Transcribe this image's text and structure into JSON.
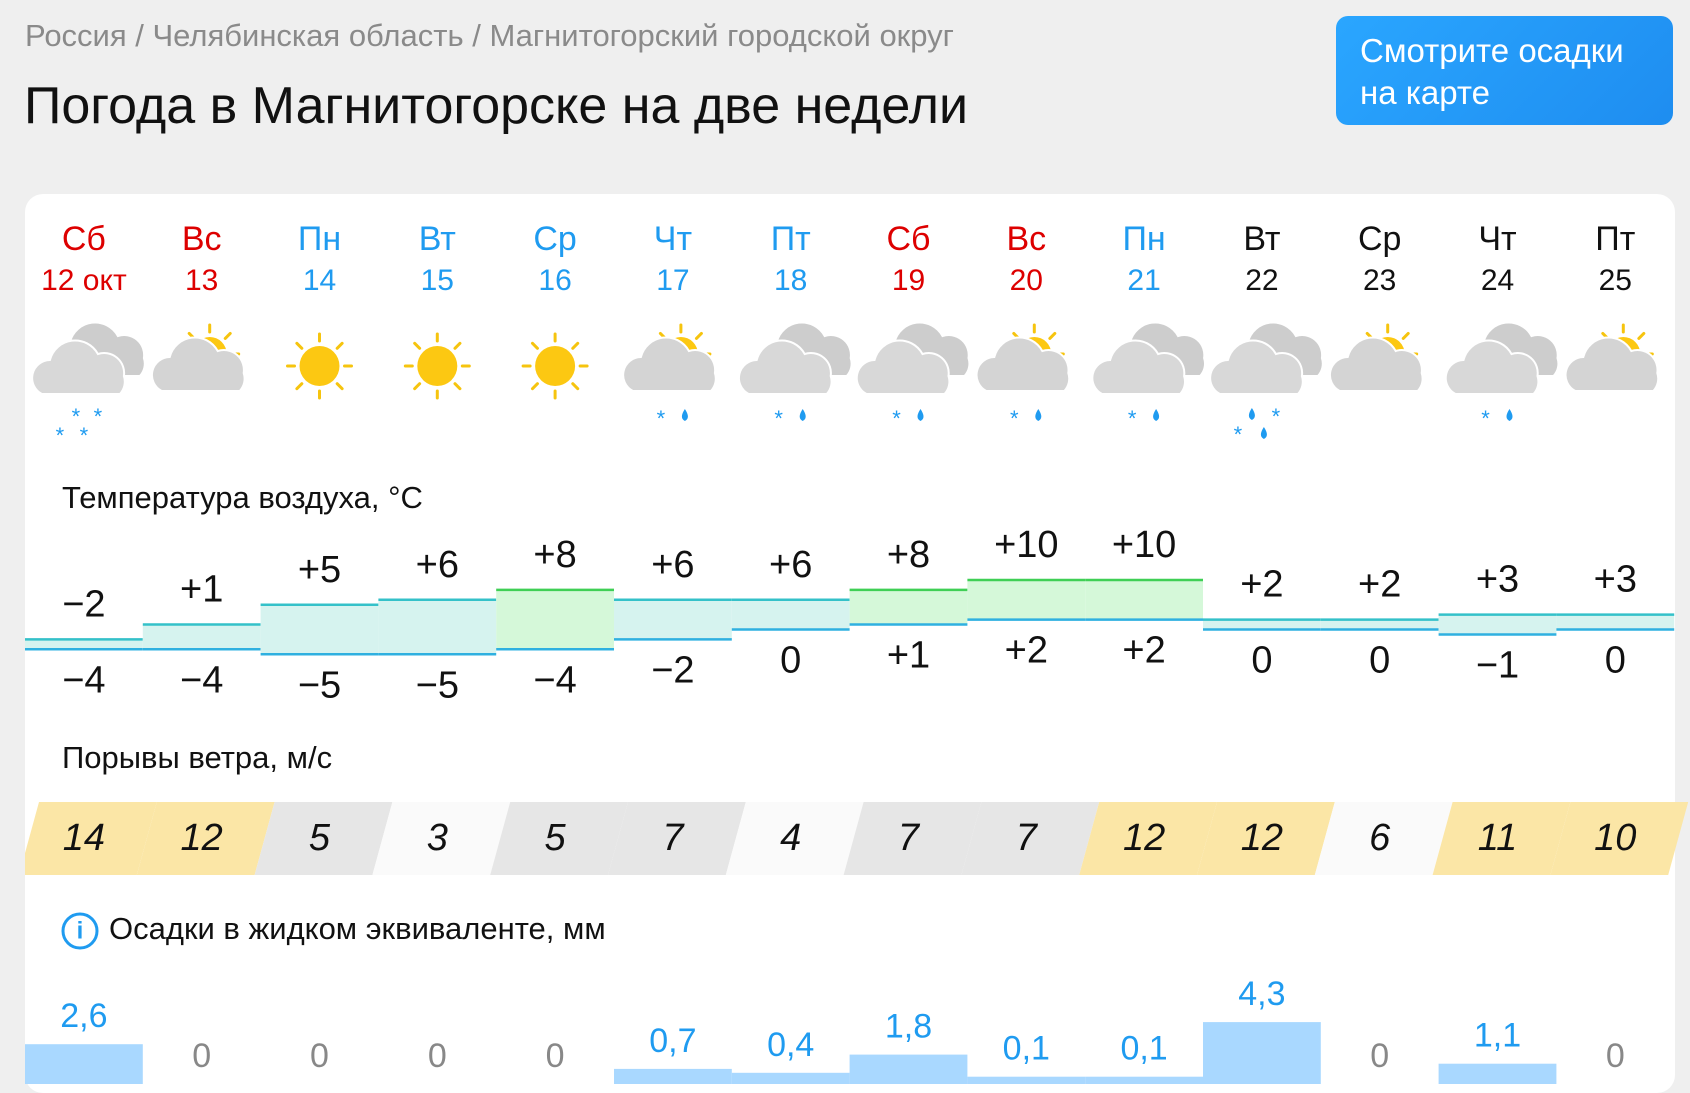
{
  "breadcrumb": "Россия / Челябинская область / Магнитогорский городской округ",
  "title": "Погода в Магнитогорске на две недели",
  "map_button": "Смотрите осадки на карте",
  "temperature_label": "Температура воздуха, °C",
  "wind_label": "Порывы ветра, м/с",
  "precipitation_label": "Осадки в жидком эквиваленте, мм",
  "days": [
    {
      "weekday": "Сб",
      "date": "12 окт",
      "temp_max": {
        "value": -2,
        "label": "−2"
      },
      "temp_min": {
        "value": -4,
        "label": "−4"
      },
      "wind": 14,
      "precipitation": {
        "value": 2.6,
        "label": "2,6"
      }
    },
    {
      "weekday": "Вс",
      "date": "13",
      "temp_max": {
        "value": 1,
        "label": "+1"
      },
      "temp_min": {
        "value": -4,
        "label": "−4"
      },
      "wind": 12,
      "precipitation": 0
    },
    {
      "weekday": "Пн",
      "date": "14",
      "temp_max": {
        "value": 5,
        "label": "+5"
      },
      "temp_min": {
        "value": -5,
        "label": "−5"
      },
      "wind": 5,
      "precipitation": 0
    },
    {
      "weekday": "Вт",
      "date": "15",
      "temp_max": {
        "value": 6,
        "label": "+6"
      },
      "temp_min": {
        "value": -5,
        "label": "−5"
      },
      "wind": 3,
      "precipitation": 0
    },
    {
      "weekday": "Ср",
      "date": "16",
      "temp_max": {
        "value": 8,
        "label": "+8"
      },
      "temp_min": {
        "value": -4,
        "label": "−4"
      },
      "wind": 5,
      "precipitation": 0
    },
    {
      "weekday": "Чт",
      "date": "17",
      "temp_max": {
        "value": 6,
        "label": "+6"
      },
      "temp_min": {
        "value": -2,
        "label": "−2"
      },
      "wind": 7,
      "precipitation": {
        "value": 0.7,
        "label": "0,7"
      }
    },
    {
      "weekday": "Пт",
      "date": "18",
      "temp_max": {
        "value": 6,
        "label": "+6"
      },
      "temp_min": 0,
      "wind": 4,
      "precipitation": {
        "value": 0.4,
        "label": "0,4"
      }
    },
    {
      "weekday": "Сб",
      "date": "19",
      "temp_max": {
        "value": 8,
        "label": "+8"
      },
      "temp_min": {
        "value": 1,
        "label": "+1"
      },
      "wind": 7,
      "precipitation": {
        "value": 1.8,
        "label": "1,8"
      }
    },
    {
      "weekday": "Вс",
      "date": "20",
      "temp_max": {
        "value": 10,
        "label": "+10"
      },
      "temp_min": {
        "value": 2,
        "label": "+2"
      },
      "wind": 7,
      "precipitation": {
        "value": 0.1,
        "label": "0,1"
      }
    },
    {
      "weekday": "Пн",
      "date": "21",
      "temp_max": {
        "value": 10,
        "label": "+10"
      },
      "temp_min": {
        "value": 2,
        "label": "+2"
      },
      "wind": 12,
      "precipitation": {
        "value": 0.1,
        "label": "0,1"
      }
    },
    {
      "weekday": "Вт",
      "date": "22",
      "temp_max": {
        "value": 2,
        "label": "+2"
      },
      "temp_min": 0,
      "wind": 12,
      "precipitation": {
        "value": 4.3,
        "label": "4,3"
      }
    },
    {
      "weekday": "Ср",
      "date": "23",
      "temp_max": {
        "value": 2,
        "label": "+2"
      },
      "temp_min": 0,
      "wind": 6,
      "precipitation": 0
    },
    {
      "weekday": "Чт",
      "date": "24",
      "temp_max": {
        "value": 3,
        "label": "+3"
      },
      "temp_min": {
        "value": -1,
        "label": "−1"
      },
      "wind": 11,
      "precipitation": {
        "value": 1.1,
        "label": "1,1"
      }
    },
    {
      "weekday": "Пт",
      "date": "25",
      "temp_max": {
        "value": 3,
        "label": "+3"
      },
      "temp_min": 0,
      "wind": 10,
      "precipitation": 0
    }
  ]
}
